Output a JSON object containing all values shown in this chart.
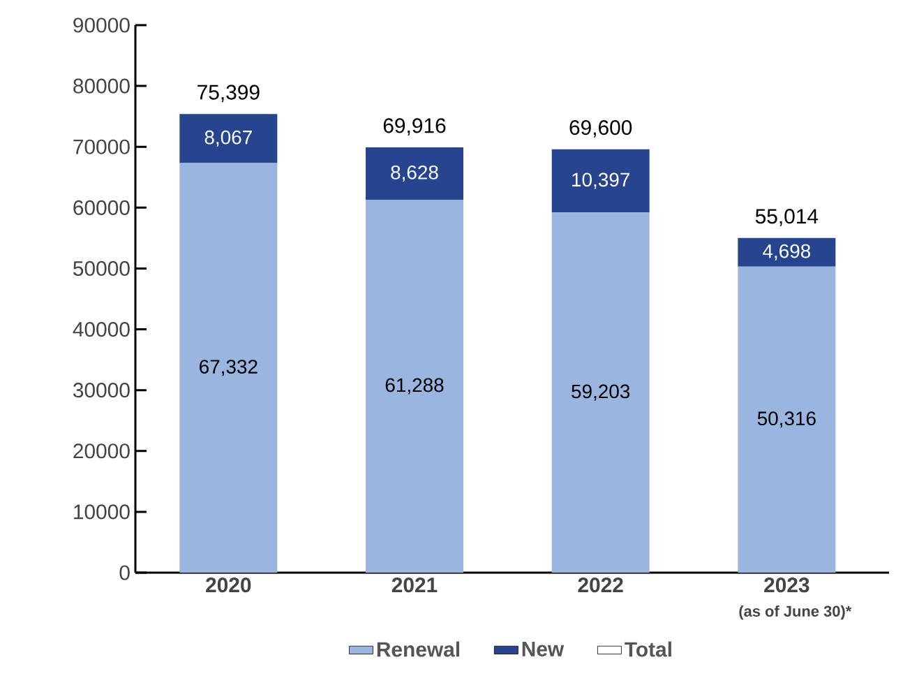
{
  "chart_data": {
    "type": "bar",
    "stacked": true,
    "categories": [
      "2020",
      "2021",
      "2022",
      "2023"
    ],
    "series": [
      {
        "name": "Renewal",
        "color": "#9ab5e0",
        "values": [
          67332,
          61288,
          59203,
          50316
        ],
        "value_labels": [
          "67,332",
          "61,288",
          "59,203",
          "50,316"
        ]
      },
      {
        "name": "New",
        "color": "#27448f",
        "values": [
          8067,
          8628,
          10397,
          4698
        ],
        "value_labels": [
          "8,067",
          "8,628",
          "10,397",
          "4,698"
        ]
      },
      {
        "name": "Total",
        "color": "#ffffff",
        "values": [
          null,
          null,
          null,
          null
        ]
      }
    ],
    "totals": [
      "75,399",
      "69,916",
      "69,600",
      "55,014"
    ],
    "annotations": [
      "(as of June 30)*"
    ],
    "ylim": [
      0,
      90000
    ],
    "yticks": [
      0,
      10000,
      20000,
      30000,
      40000,
      50000,
      60000,
      70000,
      80000,
      90000
    ],
    "grid": false,
    "legend": "bottom"
  }
}
